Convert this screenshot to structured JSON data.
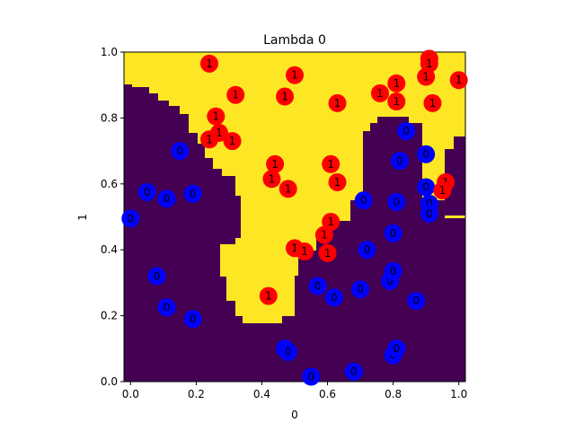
{
  "chart_data": {
    "type": "scatter",
    "title": "Lambda 0",
    "xlabel": "0",
    "ylabel": "1",
    "xlim": [
      -0.02,
      1.02
    ],
    "ylim": [
      0.0,
      1.0
    ],
    "x_ticks": [
      0.0,
      0.2,
      0.4,
      0.6,
      0.8,
      1.0
    ],
    "y_ticks": [
      0.0,
      0.2,
      0.4,
      0.6,
      0.8,
      1.0
    ],
    "x_tick_labels": [
      "0.0",
      "0.2",
      "0.4",
      "0.6",
      "0.8",
      "1.0"
    ],
    "y_tick_labels": [
      "0.0",
      "0.2",
      "0.4",
      "0.6",
      "0.8",
      "1.0"
    ],
    "grid": false,
    "background_region": {
      "type": "decision_region",
      "colors": {
        "class_0": "#440154",
        "class_1": "#fde725"
      }
    },
    "series": [
      {
        "label": "0",
        "color": "#0000ff",
        "points": [
          [
            0.0,
            0.495
          ],
          [
            0.05,
            0.575
          ],
          [
            0.11,
            0.555
          ],
          [
            0.15,
            0.7
          ],
          [
            0.19,
            0.57
          ],
          [
            0.08,
            0.32
          ],
          [
            0.11,
            0.225
          ],
          [
            0.19,
            0.19
          ],
          [
            0.47,
            0.1
          ],
          [
            0.48,
            0.09
          ],
          [
            0.55,
            0.015
          ],
          [
            0.57,
            0.29
          ],
          [
            0.62,
            0.255
          ],
          [
            0.68,
            0.03
          ],
          [
            0.7,
            0.28
          ],
          [
            0.71,
            0.55
          ],
          [
            0.72,
            0.4
          ],
          [
            0.79,
            0.305
          ],
          [
            0.8,
            0.335
          ],
          [
            0.8,
            0.08
          ],
          [
            0.81,
            0.1
          ],
          [
            0.8,
            0.45
          ],
          [
            0.81,
            0.545
          ],
          [
            0.82,
            0.67
          ],
          [
            0.84,
            0.76
          ],
          [
            0.87,
            0.245
          ],
          [
            0.9,
            0.69
          ],
          [
            0.9,
            0.59
          ],
          [
            0.91,
            0.54
          ],
          [
            0.91,
            0.51
          ]
        ]
      },
      {
        "label": "1",
        "color": "#ff0000",
        "points": [
          [
            0.24,
            0.965
          ],
          [
            0.26,
            0.805
          ],
          [
            0.27,
            0.755
          ],
          [
            0.24,
            0.735
          ],
          [
            0.31,
            0.73
          ],
          [
            0.32,
            0.87
          ],
          [
            0.47,
            0.865
          ],
          [
            0.5,
            0.93
          ],
          [
            0.63,
            0.845
          ],
          [
            0.76,
            0.875
          ],
          [
            0.81,
            0.905
          ],
          [
            0.81,
            0.85
          ],
          [
            0.91,
            0.98
          ],
          [
            0.91,
            0.965
          ],
          [
            0.9,
            0.925
          ],
          [
            0.92,
            0.845
          ],
          [
            1.0,
            0.915
          ],
          [
            0.44,
            0.66
          ],
          [
            0.43,
            0.615
          ],
          [
            0.48,
            0.585
          ],
          [
            0.61,
            0.66
          ],
          [
            0.63,
            0.605
          ],
          [
            0.61,
            0.485
          ],
          [
            0.59,
            0.445
          ],
          [
            0.5,
            0.405
          ],
          [
            0.53,
            0.395
          ],
          [
            0.6,
            0.39
          ],
          [
            0.42,
            0.26
          ],
          [
            0.96,
            0.605
          ],
          [
            0.95,
            0.58
          ]
        ]
      }
    ]
  }
}
